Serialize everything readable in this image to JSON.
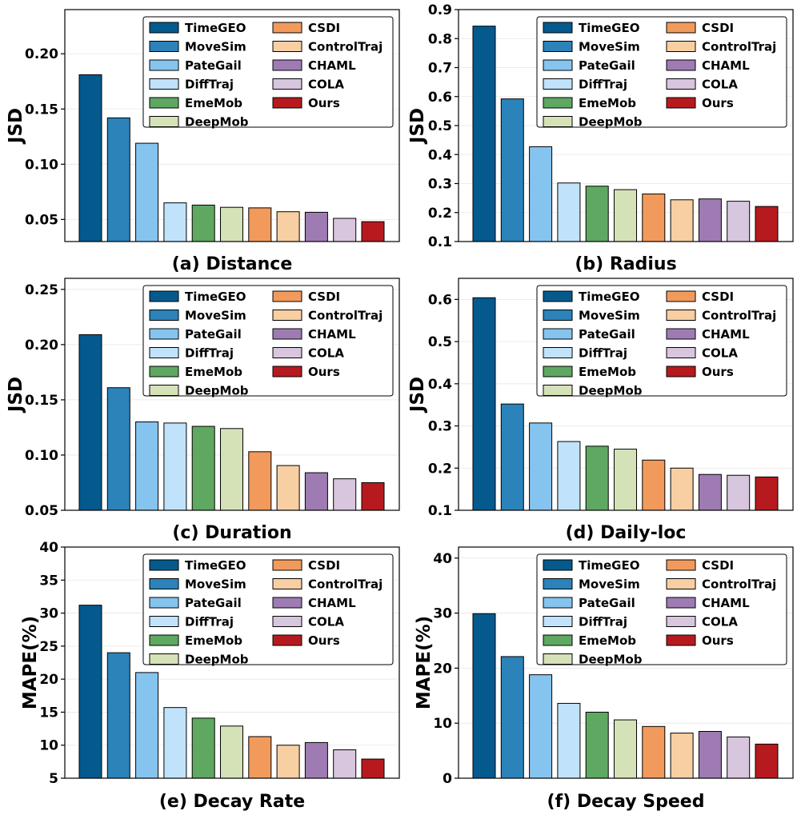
{
  "models": [
    "TimeGEO",
    "MoveSim",
    "PateGail",
    "DiffTraj",
    "EmeMob",
    "DeepMob",
    "CSDI",
    "ControlTraj",
    "CHAML",
    "COLA",
    "Ours"
  ],
  "colors": [
    "#045a8d",
    "#2b83ba",
    "#85c4ef",
    "#c0e3fb",
    "#5ea861",
    "#d5e2b8",
    "#f29a5c",
    "#f8cfa2",
    "#9f7bb3",
    "#d8c5de",
    "#b71a1e"
  ],
  "chart_data": [
    {
      "type": "bar",
      "title": "(a) Distance",
      "ylabel": "JSD",
      "ylim": [
        0.03,
        0.24
      ],
      "yticks": [
        0.05,
        0.1,
        0.15,
        0.2
      ],
      "tick_decimals": 2,
      "categories": [
        "TimeGEO",
        "MoveSim",
        "PateGail",
        "DiffTraj",
        "EmeMob",
        "DeepMob",
        "CSDI",
        "ControlTraj",
        "CHAML",
        "COLA",
        "Ours"
      ],
      "values": [
        0.181,
        0.142,
        0.119,
        0.065,
        0.063,
        0.061,
        0.0605,
        0.057,
        0.0565,
        0.051,
        0.048
      ]
    },
    {
      "type": "bar",
      "title": "(b) Radius",
      "ylabel": "JSD",
      "ylim": [
        0.1,
        0.9
      ],
      "yticks": [
        0.1,
        0.2,
        0.3,
        0.4,
        0.5,
        0.6,
        0.7,
        0.8,
        0.9
      ],
      "tick_decimals": 1,
      "categories": [
        "TimeGEO",
        "MoveSim",
        "PateGail",
        "DiffTraj",
        "EmeMob",
        "DeepMob",
        "CSDI",
        "ControlTraj",
        "CHAML",
        "COLA",
        "Ours"
      ],
      "values": [
        0.843,
        0.592,
        0.427,
        0.302,
        0.291,
        0.279,
        0.264,
        0.244,
        0.247,
        0.239,
        0.221
      ]
    },
    {
      "type": "bar",
      "title": "(c) Duration",
      "ylabel": "JSD",
      "ylim": [
        0.05,
        0.26
      ],
      "yticks": [
        0.05,
        0.1,
        0.15,
        0.2,
        0.25
      ],
      "tick_decimals": 2,
      "categories": [
        "TimeGEO",
        "MoveSim",
        "PateGail",
        "DiffTraj",
        "EmeMob",
        "DeepMob",
        "CSDI",
        "ControlTraj",
        "CHAML",
        "COLA",
        "Ours"
      ],
      "values": [
        0.209,
        0.161,
        0.13,
        0.129,
        0.126,
        0.124,
        0.103,
        0.0905,
        0.084,
        0.0785,
        0.075
      ]
    },
    {
      "type": "bar",
      "title": "(d) Daily-loc",
      "ylabel": "JSD",
      "ylim": [
        0.1,
        0.65
      ],
      "yticks": [
        0.1,
        0.2,
        0.3,
        0.4,
        0.5,
        0.6
      ],
      "tick_decimals": 1,
      "categories": [
        "TimeGEO",
        "MoveSim",
        "PateGail",
        "DiffTraj",
        "EmeMob",
        "DeepMob",
        "CSDI",
        "ControlTraj",
        "CHAML",
        "COLA",
        "Ours"
      ],
      "values": [
        0.604,
        0.352,
        0.307,
        0.263,
        0.252,
        0.245,
        0.219,
        0.2,
        0.185,
        0.183,
        0.179
      ]
    },
    {
      "type": "bar",
      "title": "(e) Decay Rate",
      "ylabel": "MAPE(%)",
      "ylim": [
        5,
        40
      ],
      "yticks": [
        5,
        10,
        15,
        20,
        25,
        30,
        35,
        40
      ],
      "tick_decimals": 0,
      "categories": [
        "TimeGEO",
        "MoveSim",
        "PateGail",
        "DiffTraj",
        "EmeMob",
        "DeepMob",
        "CSDI",
        "ControlTraj",
        "CHAML",
        "COLA",
        "Ours"
      ],
      "values": [
        31.2,
        24.0,
        21.0,
        15.7,
        14.1,
        12.9,
        11.3,
        10.0,
        10.4,
        9.3,
        7.9
      ]
    },
    {
      "type": "bar",
      "title": "(f) Decay Speed",
      "ylabel": "MAPE(%)",
      "ylim": [
        0,
        42
      ],
      "yticks": [
        0,
        10,
        20,
        30,
        40
      ],
      "tick_decimals": 0,
      "categories": [
        "TimeGEO",
        "MoveSim",
        "PateGail",
        "DiffTraj",
        "EmeMob",
        "DeepMob",
        "CSDI",
        "ControlTraj",
        "CHAML",
        "COLA",
        "Ours"
      ],
      "values": [
        29.9,
        22.1,
        18.8,
        13.6,
        12.0,
        10.6,
        9.4,
        8.2,
        8.5,
        7.5,
        6.2
      ]
    }
  ]
}
